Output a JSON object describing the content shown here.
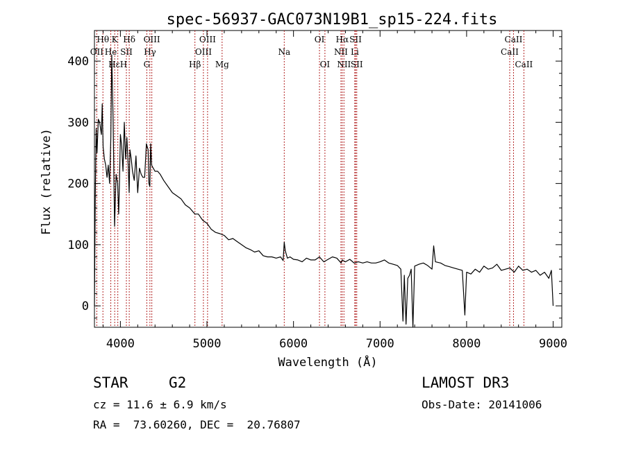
{
  "header": {
    "title": "spec-56937-GAC073N19B1_sp15-224.fits"
  },
  "info": {
    "class": "STAR",
    "subclass": "G2",
    "survey": "LAMOST DR3",
    "cz": "cz = 11.6 ± 6.9 km/s",
    "obs_date": "Obs-Date: 20141006",
    "radec": "RA =  73.60260, DEC =  20.76807"
  },
  "colors": {
    "line_marker": "#b22222",
    "spectrum": "#000000",
    "axis": "#000000"
  },
  "chart_data": {
    "type": "line",
    "title": "spec-56937-GAC073N19B1_sp15-224.fits",
    "xlabel": "Wavelength (Å)",
    "ylabel": "Flux (relative)",
    "xlim": [
      3700,
      9100
    ],
    "ylim": [
      -35,
      450
    ],
    "xticks": [
      4000,
      5000,
      6000,
      7000,
      8000,
      9000
    ],
    "yticks": [
      0,
      100,
      200,
      300,
      400
    ],
    "series": [
      {
        "name": "flux",
        "x": [
          3700,
          3710,
          3720,
          3730,
          3745,
          3760,
          3780,
          3790,
          3800,
          3815,
          3830,
          3845,
          3860,
          3875,
          3889,
          3900,
          3915,
          3933,
          3950,
          3968,
          3980,
          3990,
          4000,
          4015,
          4030,
          4045,
          4060,
          4075,
          4090,
          4101,
          4110,
          4125,
          4140,
          4160,
          4180,
          4200,
          4220,
          4240,
          4260,
          4280,
          4300,
          4320,
          4330,
          4340,
          4350,
          4360,
          4380,
          4400,
          4430,
          4460,
          4500,
          4550,
          4600,
          4650,
          4700,
          4750,
          4800,
          4861,
          4900,
          4950,
          5000,
          5050,
          5100,
          5150,
          5200,
          5250,
          5300,
          5350,
          5400,
          5450,
          5500,
          5550,
          5600,
          5650,
          5700,
          5750,
          5800,
          5850,
          5880,
          5893,
          5905,
          5930,
          5960,
          6000,
          6050,
          6100,
          6150,
          6200,
          6250,
          6300,
          6350,
          6400,
          6450,
          6500,
          6550,
          6563,
          6600,
          6650,
          6700,
          6750,
          6800,
          6850,
          6900,
          6950,
          7000,
          7050,
          7100,
          7150,
          7200,
          7240,
          7265,
          7280,
          7300,
          7320,
          7340,
          7360,
          7380,
          7400,
          7450,
          7500,
          7550,
          7600,
          7620,
          7640,
          7700,
          7750,
          7800,
          7850,
          7900,
          7950,
          7980,
          8000,
          8050,
          8100,
          8150,
          8200,
          8250,
          8300,
          8350,
          8400,
          8450,
          8500,
          8550,
          8600,
          8650,
          8700,
          8750,
          8800,
          8850,
          8900,
          8950,
          8980,
          9000
        ],
        "values": [
          0,
          180,
          290,
          250,
          305,
          300,
          280,
          330,
          260,
          240,
          230,
          210,
          230,
          200,
          275,
          410,
          310,
          130,
          215,
          200,
          150,
          205,
          280,
          260,
          220,
          300,
          240,
          275,
          230,
          185,
          255,
          240,
          220,
          205,
          245,
          185,
          225,
          215,
          210,
          210,
          265,
          255,
          200,
          195,
          265,
          230,
          225,
          220,
          220,
          215,
          205,
          195,
          185,
          180,
          175,
          165,
          160,
          150,
          150,
          140,
          135,
          125,
          120,
          118,
          115,
          108,
          110,
          105,
          100,
          95,
          92,
          88,
          90,
          82,
          80,
          80,
          78,
          80,
          74,
          104,
          90,
          78,
          80,
          76,
          75,
          72,
          78,
          75,
          75,
          80,
          72,
          76,
          80,
          78,
          70,
          75,
          72,
          76,
          70,
          72,
          70,
          72,
          70,
          70,
          72,
          75,
          70,
          68,
          66,
          60,
          -25,
          50,
          -30,
          45,
          50,
          60,
          -35,
          65,
          68,
          70,
          66,
          60,
          98,
          72,
          70,
          66,
          64,
          62,
          60,
          58,
          -15,
          55,
          52,
          60,
          55,
          65,
          60,
          62,
          68,
          58,
          60,
          62,
          55,
          65,
          58,
          60,
          55,
          58,
          50,
          55,
          45,
          58,
          0
        ]
      }
    ],
    "lines": [
      {
        "name": "Hθ",
        "wave": 3798,
        "row": 0
      },
      {
        "name": "OII",
        "wave": 3727,
        "row": 1
      },
      {
        "name": "HεH",
        "wave": 3970,
        "row": 2
      },
      {
        "name": "He",
        "wave": 3889,
        "row": 1
      },
      {
        "name": "K",
        "wave": 3934,
        "row": 0
      },
      {
        "name": "SII",
        "wave": 4069,
        "row": 1
      },
      {
        "name": "Hδ",
        "wave": 4102,
        "row": 0
      },
      {
        "name": "Hγ",
        "wave": 4341,
        "row": 1
      },
      {
        "name": "OIII",
        "wave": 4363,
        "row": 0
      },
      {
        "name": "G",
        "wave": 4305,
        "row": 2
      },
      {
        "name": "Hβ",
        "wave": 4861,
        "row": 2
      },
      {
        "name": "OIII",
        "wave": 4959,
        "row": 1
      },
      {
        "name": "OIII",
        "wave": 5007,
        "row": 0
      },
      {
        "name": "Mg",
        "wave": 5175,
        "row": 2
      },
      {
        "name": "Na",
        "wave": 5893,
        "row": 1
      },
      {
        "name": "OI",
        "wave": 6300,
        "row": 0
      },
      {
        "name": "OI",
        "wave": 6363,
        "row": 2
      },
      {
        "name": "NII",
        "wave": 6548,
        "row": 1
      },
      {
        "name": "Hα",
        "wave": 6563,
        "row": 0
      },
      {
        "name": "NII",
        "wave": 6583,
        "row": 2
      },
      {
        "name": "Li",
        "wave": 6708,
        "row": 1
      },
      {
        "name": "SII",
        "wave": 6717,
        "row": 0
      },
      {
        "name": "SII",
        "wave": 6731,
        "row": 2
      },
      {
        "name": "CaII",
        "wave": 8498,
        "row": 1
      },
      {
        "name": "CaII",
        "wave": 8542,
        "row": 0
      },
      {
        "name": "CaII",
        "wave": 8662,
        "row": 2
      }
    ]
  }
}
